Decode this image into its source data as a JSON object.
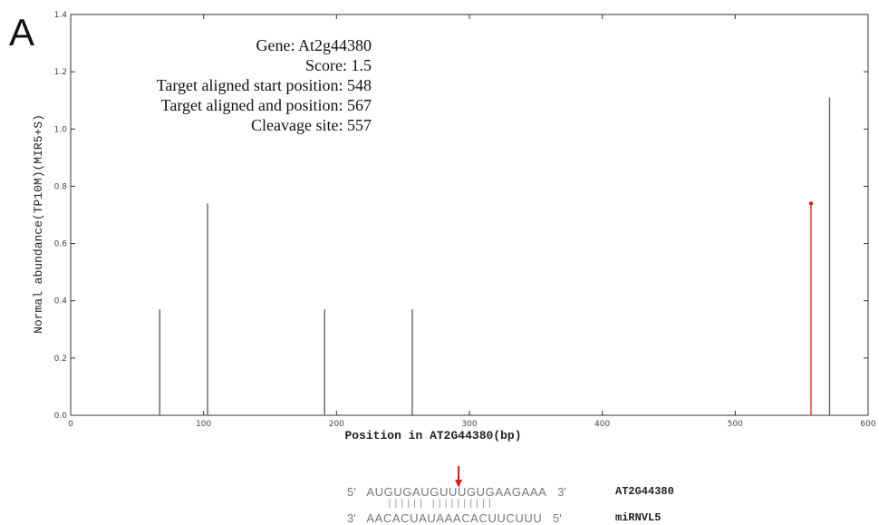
{
  "panel_label": "A",
  "info": {
    "gene": "Gene: At2g44380",
    "score": "Score: 1.5",
    "start": "Target aligned start position: 548",
    "end": "Target aligned and position: 567",
    "cleavage": "Cleavage site: 557"
  },
  "chart_data": {
    "type": "bar",
    "xlabel": "Position in AT2G44380(bp)",
    "ylabel": "Normal abundance(TP10M)(MIR5+S)",
    "xlim": [
      0,
      600
    ],
    "ylim": [
      0,
      1.4
    ],
    "xticks": [
      0,
      100,
      200,
      300,
      400,
      500,
      600
    ],
    "yticks": [
      "0.0",
      "0.2",
      "0.4",
      "0.6",
      "0.8",
      "1.0",
      "1.2",
      "1.4"
    ],
    "series": [
      {
        "color": "#555555",
        "x": [
          67,
          103,
          191,
          257,
          571
        ],
        "values": [
          0.37,
          0.74,
          0.37,
          0.37,
          1.11
        ]
      },
      {
        "color": "#e0201c",
        "x": [
          557
        ],
        "values": [
          0.74
        ]
      }
    ]
  },
  "alignment": {
    "target_5": "5'",
    "target_seq": "AUGUGAUGUUUGUGAAGAAA",
    "target_3": "3'",
    "target_name": "AT2G44380",
    "pairs": "|||||| ||||||||||",
    "mirna_3": "3'",
    "mirna_seq": "AACACUAUAAACACUUCUUU",
    "mirna_5": "5'",
    "mirna_name": "miRNVL5",
    "arrow_color": "#e0201c"
  }
}
